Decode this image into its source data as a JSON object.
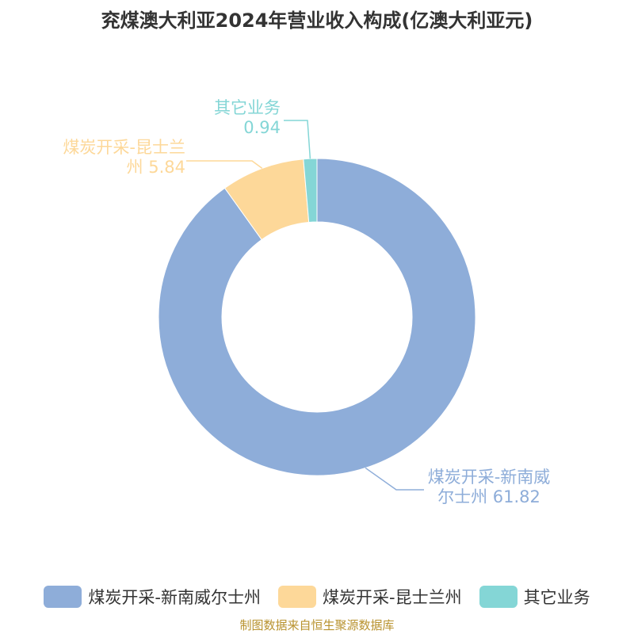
{
  "chart_data": {
    "type": "donut",
    "title": "兖煤澳大利亚2024年营业收入构成(亿澳大利亚元)",
    "categories": [
      "煤炭开采-新南威尔士州",
      "煤炭开采-昆士兰州",
      "其它业务"
    ],
    "values": [
      61.82,
      5.84,
      0.94
    ],
    "colors": [
      "#8eadd9",
      "#fdd899",
      "#84d6d6"
    ],
    "legend": "bottom",
    "source": "制图数据来自恒生聚源数据库"
  }
}
